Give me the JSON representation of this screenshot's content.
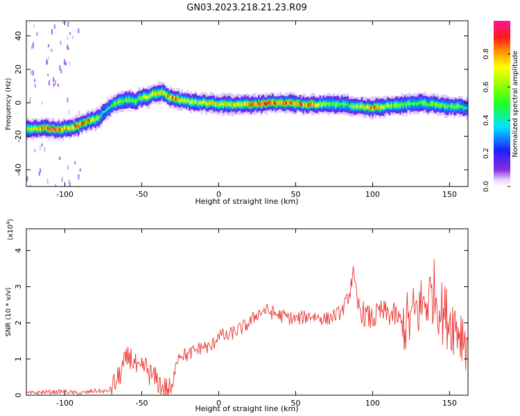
{
  "title": "GN03.2023.218.21.23.R09",
  "chart_data": [
    {
      "type": "heatmap",
      "title": "GN03.2023.218.21.23.R09",
      "xlabel": "Height of straight line (km)",
      "ylabel": "Frequency (Hz)",
      "xlim": [
        -125,
        162
      ],
      "ylim": [
        -50,
        49
      ],
      "x_ticks": [
        -100,
        -50,
        0,
        50,
        100,
        150
      ],
      "y_ticks": [
        -40,
        -20,
        0,
        20,
        40
      ],
      "grid": false,
      "colormap": "rainbow (white → purple → blue → cyan → green → yellow → red → magenta)",
      "colorbar": {
        "label": "Normalized spectral amplitude",
        "ticks": [
          0.0,
          0.2,
          0.4,
          0.6,
          0.8
        ],
        "range": [
          0,
          1
        ]
      },
      "ridge_frequency": {
        "x": [
          -125,
          -115,
          -105,
          -95,
          -90,
          -85,
          -78,
          -72,
          -66,
          -60,
          -55,
          -50,
          -45,
          -40,
          -36,
          -32,
          -28,
          -20,
          -10,
          0,
          20,
          40,
          60,
          80,
          90,
          100,
          110,
          120,
          130,
          140,
          150,
          162
        ],
        "y": [
          -16,
          -15,
          -16,
          -15,
          -13,
          -11,
          -9,
          -3,
          0,
          2,
          1,
          3,
          4,
          6,
          6,
          3,
          2,
          1,
          0,
          -1,
          -1,
          0,
          -1,
          -1,
          -2,
          -3,
          -2,
          -1,
          0,
          -1,
          -2,
          -3
        ]
      },
      "ridge_amplitude": {
        "x": [
          -125,
          -110,
          -95,
          -85,
          -75,
          -65,
          -55,
          -45,
          -38,
          -30,
          -20,
          0,
          20,
          40,
          55,
          70,
          85,
          100,
          115,
          130,
          145,
          162
        ],
        "y": [
          0.6,
          0.9,
          0.8,
          0.9,
          0.45,
          0.55,
          0.6,
          0.7,
          0.75,
          0.85,
          0.7,
          0.75,
          0.8,
          0.95,
          0.9,
          0.6,
          0.55,
          0.85,
          0.6,
          0.55,
          0.6,
          0.5
        ]
      }
    },
    {
      "type": "line",
      "xlabel": "Height of straight line (km)",
      "ylabel": "SNR (10 * v/v)",
      "y_exponent_label": "(x10",
      "y_exponent_power": "4",
      "y_exponent_close": ")",
      "xlim": [
        -125,
        162
      ],
      "ylim": [
        0,
        4.6
      ],
      "x_ticks": [
        -100,
        -50,
        0,
        50,
        100,
        150
      ],
      "y_ticks": [
        0,
        1,
        2,
        3,
        4
      ],
      "grid": false,
      "color": "#e8352f",
      "series": [
        {
          "x": [
            -125,
            -115,
            -100,
            -90,
            -80,
            -72,
            -66,
            -62,
            -58,
            -55,
            -52,
            -48,
            -44,
            -40,
            -36,
            -32,
            -30,
            -28,
            -25,
            -20,
            -15,
            -10,
            -5,
            0,
            5,
            10,
            15,
            20,
            25,
            30,
            40,
            50,
            60,
            70,
            80,
            85,
            87,
            90,
            95,
            100,
            105,
            110,
            115,
            120,
            125,
            130,
            135,
            140,
            145,
            150,
            155,
            162
          ],
          "y": [
            0.05,
            0.08,
            0.1,
            0.05,
            0.12,
            0.1,
            0.4,
            0.8,
            1.1,
            0.9,
            0.6,
            0.8,
            0.55,
            0.4,
            0.2,
            0.15,
            0.1,
            0.95,
            1.15,
            1.1,
            1.25,
            1.35,
            1.3,
            1.7,
            1.6,
            1.75,
            1.85,
            2.0,
            2.25,
            2.35,
            2.2,
            2.1,
            2.2,
            2.1,
            2.3,
            2.8,
            3.4,
            2.5,
            2.2,
            2.1,
            2.3,
            2.25,
            2.2,
            1.9,
            2.1,
            2.4,
            2.6,
            2.9,
            2.3,
            2.1,
            1.9,
            1.5
          ]
        }
      ]
    }
  ]
}
